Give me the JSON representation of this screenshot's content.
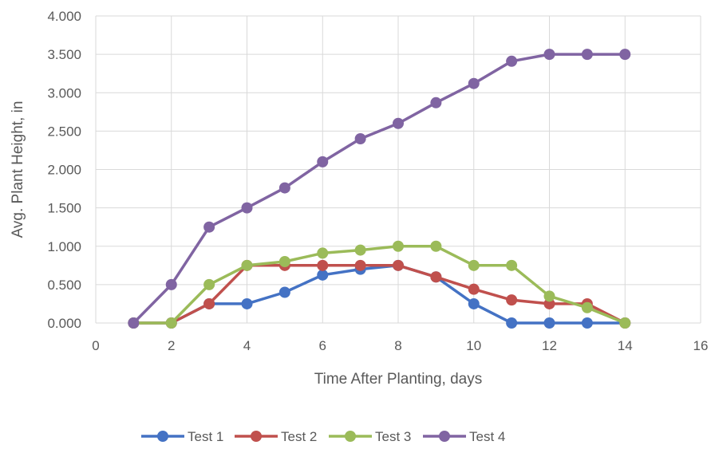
{
  "chart_data": {
    "type": "line",
    "title": "",
    "xlabel": "Time After Planting, days",
    "ylabel": "Avg. Plant Height, in",
    "xlim": [
      0,
      16
    ],
    "ylim": [
      0,
      4
    ],
    "x_ticks": [
      0,
      2,
      4,
      6,
      8,
      10,
      12,
      14,
      16
    ],
    "x_tick_labels": [
      "0",
      "2",
      "4",
      "6",
      "8",
      "10",
      "12",
      "14",
      "16"
    ],
    "y_ticks": [
      0,
      0.5,
      1,
      1.5,
      2,
      2.5,
      3,
      3.5,
      4
    ],
    "y_tick_labels": [
      "0.000",
      "0.500",
      "1.000",
      "1.500",
      "2.000",
      "2.500",
      "3.000",
      "3.500",
      "4.000"
    ],
    "grid": true,
    "legend_position": "bottom",
    "x": [
      1,
      2,
      3,
      4,
      5,
      6,
      7,
      8,
      9,
      10,
      11,
      12,
      13,
      14
    ],
    "series": [
      {
        "name": "Test 1",
        "color": "#4472C4",
        "values": [
          0,
          0,
          0.25,
          0.25,
          0.4,
          0.625,
          0.7,
          0.75,
          0.6,
          0.25,
          0,
          0,
          0,
          0
        ]
      },
      {
        "name": "Test 2",
        "color": "#C0504D",
        "values": [
          0,
          0,
          0.25,
          0.75,
          0.75,
          0.75,
          0.75,
          0.75,
          0.6,
          0.44,
          0.3,
          0.25,
          0.25,
          0
        ]
      },
      {
        "name": "Test 3",
        "color": "#9BBB59",
        "values": [
          0,
          0,
          0.5,
          0.75,
          0.8,
          0.91,
          0.95,
          1.0,
          1.0,
          0.75,
          0.75,
          0.35,
          0.2,
          0
        ]
      },
      {
        "name": "Test 4",
        "color": "#8064A2",
        "values": [
          0,
          0.5,
          1.25,
          1.5,
          1.76,
          2.1,
          2.4,
          2.6,
          2.87,
          3.12,
          3.41,
          3.5,
          3.5,
          3.5
        ]
      }
    ],
    "gridline_color": "#d9d9d9"
  }
}
